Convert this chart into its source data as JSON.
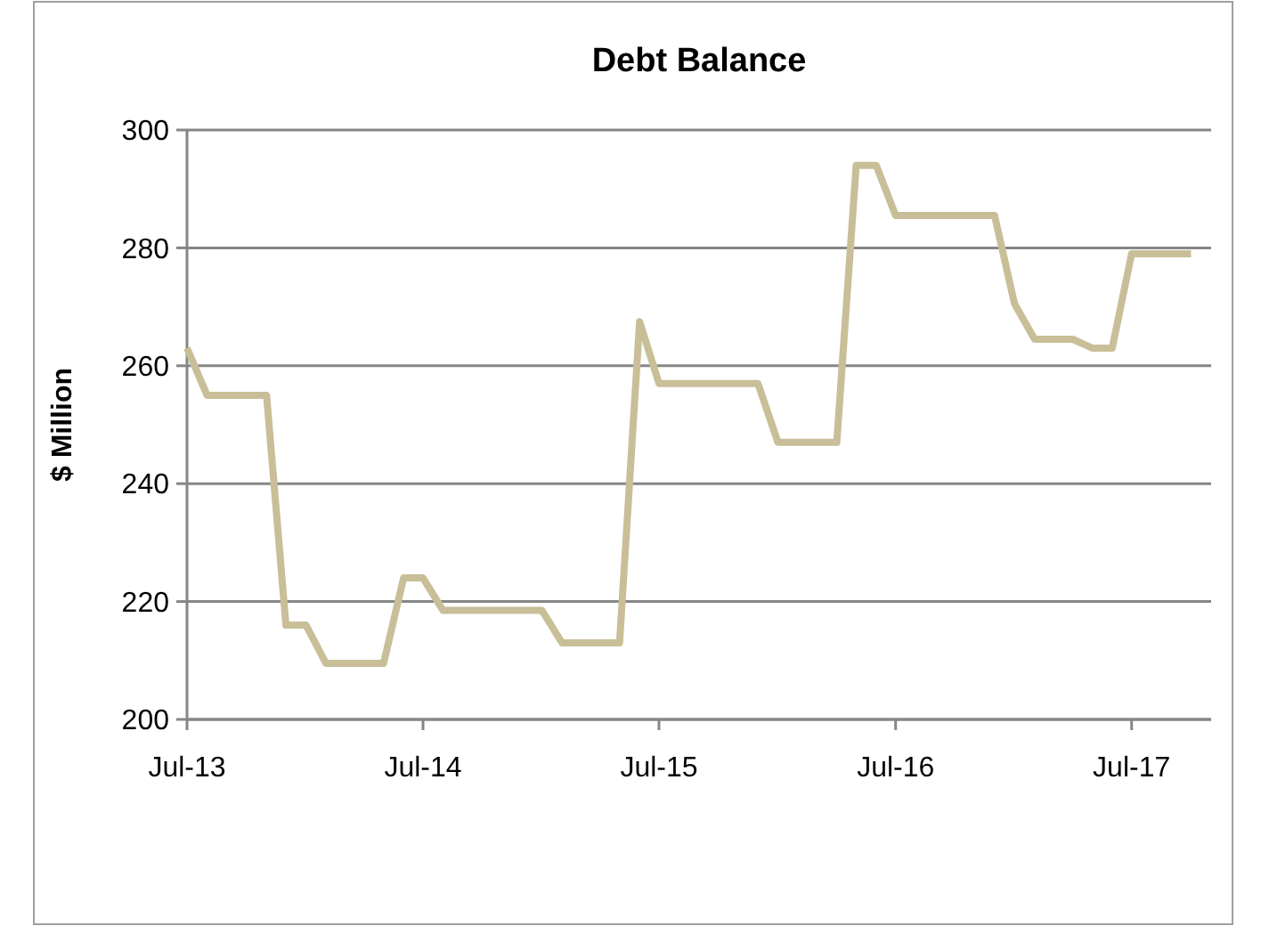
{
  "chart_data": {
    "type": "line",
    "title": "Debt Balance",
    "ylabel": "$ Million",
    "x": [
      "2013-07",
      "2013-08",
      "2013-09",
      "2013-10",
      "2013-11",
      "2013-12",
      "2014-01",
      "2014-02",
      "2014-03",
      "2014-04",
      "2014-05",
      "2014-06",
      "2014-07",
      "2014-08",
      "2014-09",
      "2014-10",
      "2014-11",
      "2014-12",
      "2015-01",
      "2015-02",
      "2015-03",
      "2015-04",
      "2015-05",
      "2015-06",
      "2015-07",
      "2015-08",
      "2015-09",
      "2015-10",
      "2015-11",
      "2015-12",
      "2016-01",
      "2016-02",
      "2016-03",
      "2016-04",
      "2016-05",
      "2016-06",
      "2016-07",
      "2016-08",
      "2016-09",
      "2016-10",
      "2016-11",
      "2016-12",
      "2017-01",
      "2017-02",
      "2017-03",
      "2017-04",
      "2017-05",
      "2017-06",
      "2017-07",
      "2017-08",
      "2017-09",
      "2017-10"
    ],
    "series": [
      {
        "color": "#c8bf98",
        "values": [
          263,
          255,
          255,
          255,
          255,
          216,
          216,
          209.5,
          209.5,
          209.5,
          209.5,
          224,
          224,
          218.5,
          218.5,
          218.5,
          218.5,
          218.5,
          218.5,
          213,
          213,
          213,
          213,
          267.5,
          257,
          257,
          257,
          257,
          257,
          257,
          247,
          247,
          247,
          247,
          294,
          294,
          285.5,
          285.5,
          285.5,
          285.5,
          285.5,
          285.5,
          270.5,
          264.5,
          264.5,
          264.5,
          263,
          263,
          279,
          279,
          279,
          279
        ]
      }
    ],
    "xlim": [
      "2013-07",
      "2017-11"
    ],
    "xticks": [
      {
        "value": "2013-07",
        "label": "Jul-13"
      },
      {
        "value": "2014-07",
        "label": "Jul-14"
      },
      {
        "value": "2015-07",
        "label": "Jul-15"
      },
      {
        "value": "2016-07",
        "label": "Jul-16"
      },
      {
        "value": "2017-07",
        "label": "Jul-17"
      }
    ],
    "ylim": [
      200,
      300
    ],
    "yticks": [
      200,
      220,
      240,
      260,
      280,
      300
    ],
    "grid": "y",
    "marker": "none",
    "line_style": "solid"
  }
}
